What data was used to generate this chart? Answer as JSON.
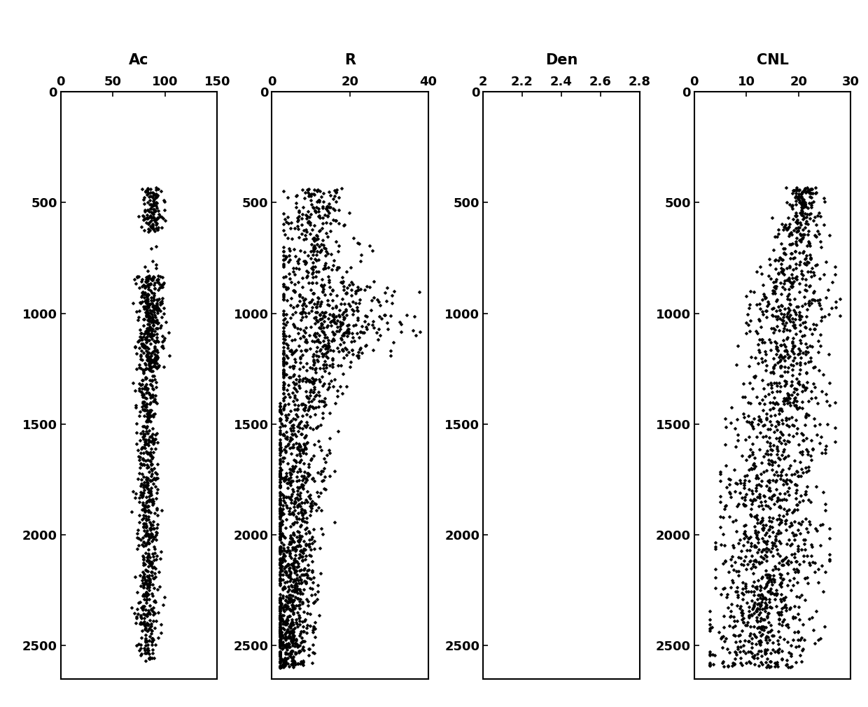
{
  "panels": [
    {
      "title": "Ac",
      "xlim": [
        0,
        150
      ],
      "xticks": [
        0,
        50,
        100,
        150
      ],
      "xticklabels": [
        "0",
        "50",
        "100",
        "150"
      ]
    },
    {
      "title": "R",
      "xlim": [
        0,
        40
      ],
      "xticks": [
        0,
        20,
        40
      ],
      "xticklabels": [
        "0",
        "20",
        "40"
      ]
    },
    {
      "title": "Den",
      "xlim": [
        2,
        2.8
      ],
      "xticks": [
        2,
        2.2,
        2.4,
        2.6,
        2.8
      ],
      "xticklabels": [
        "2",
        "2.2",
        "2.4",
        "2.6",
        "2.8"
      ]
    },
    {
      "title": "CNL",
      "xlim": [
        0,
        30
      ],
      "xticks": [
        0,
        10,
        20,
        30
      ],
      "xticklabels": [
        "0",
        "10",
        "20",
        "30"
      ]
    }
  ],
  "ylim": [
    2650,
    0
  ],
  "yticks": [
    0,
    500,
    1000,
    1500,
    2000,
    2500
  ],
  "marker": "D",
  "marker_color": "black",
  "marker_size": 2.5,
  "background_color": "white",
  "title_fontsize": 15,
  "tick_fontsize": 13,
  "fig_width": 12.4,
  "fig_height": 10.1,
  "dpi": 100
}
